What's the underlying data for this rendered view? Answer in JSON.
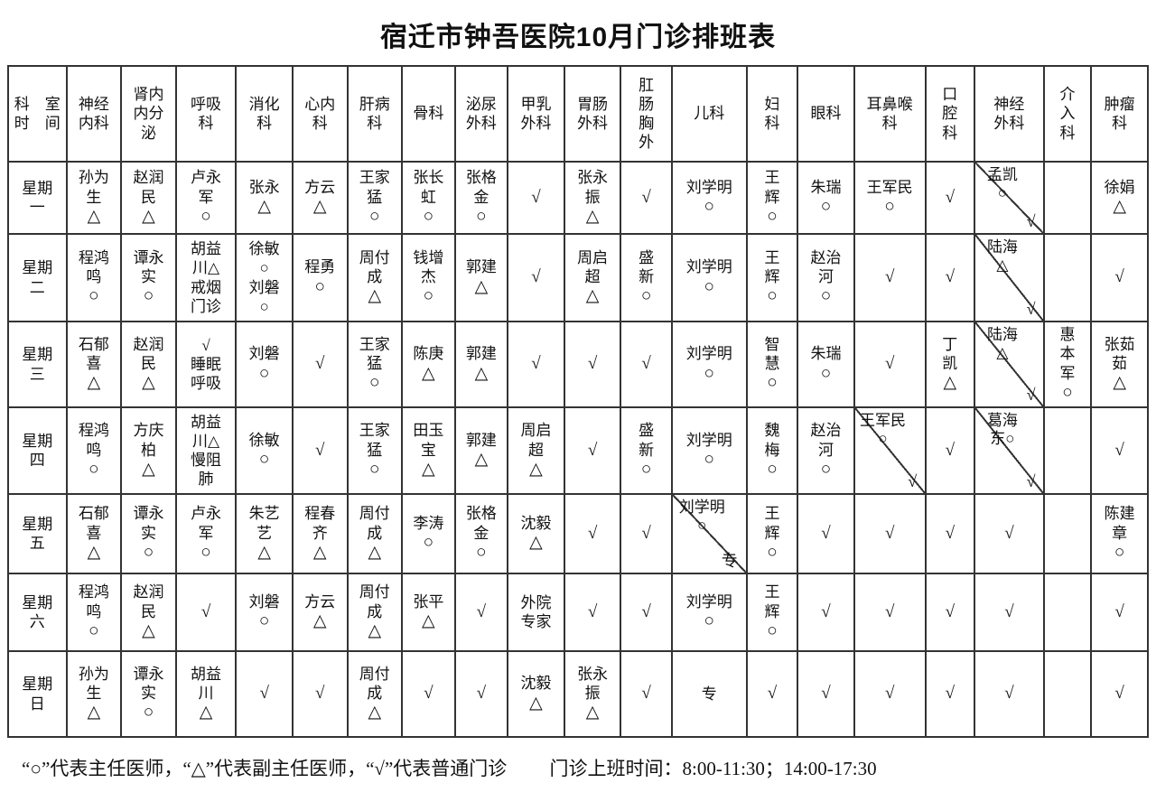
{
  "title": "宿迁市钟吾医院10月门诊排班表",
  "corner": [
    "科　室",
    "时　间"
  ],
  "departments": [
    {
      "lines": [
        "神经",
        "内科"
      ]
    },
    {
      "lines": [
        "肾内",
        "内分",
        "泌"
      ]
    },
    {
      "lines": [
        "呼吸",
        "科"
      ]
    },
    {
      "lines": [
        "消化",
        "科"
      ]
    },
    {
      "lines": [
        "心内",
        "科"
      ]
    },
    {
      "lines": [
        "肝病",
        "科"
      ]
    },
    {
      "lines": [
        "骨科"
      ]
    },
    {
      "lines": [
        "泌尿",
        "外科"
      ]
    },
    {
      "lines": [
        "甲乳",
        "外科"
      ]
    },
    {
      "lines": [
        "胃肠",
        "外科"
      ]
    },
    {
      "lines": [
        "肛",
        "肠",
        "胸",
        "外"
      ]
    },
    {
      "lines": [
        "儿科"
      ]
    },
    {
      "lines": [
        "妇",
        "科"
      ]
    },
    {
      "lines": [
        "眼科"
      ]
    },
    {
      "lines": [
        "耳鼻喉",
        "科"
      ]
    },
    {
      "lines": [
        "口",
        "腔",
        "科"
      ]
    },
    {
      "lines": [
        "神经",
        "外科"
      ]
    },
    {
      "lines": [
        "介",
        "入",
        "科"
      ]
    },
    {
      "lines": [
        "肿瘤",
        "科"
      ]
    }
  ],
  "days": [
    {
      "label": [
        "星期",
        "一"
      ],
      "cells": [
        {
          "lines": [
            "孙为",
            "生"
          ],
          "mark": "△"
        },
        {
          "lines": [
            "赵润",
            "民"
          ],
          "mark": "△"
        },
        {
          "lines": [
            "卢永",
            "军"
          ],
          "mark": "○"
        },
        {
          "lines": [
            "张永"
          ],
          "mark": "△"
        },
        {
          "lines": [
            "方云"
          ],
          "mark": "△"
        },
        {
          "lines": [
            "王家",
            "猛"
          ],
          "mark": "○"
        },
        {
          "lines": [
            "张长",
            "虹"
          ],
          "mark": "○"
        },
        {
          "lines": [
            "张格",
            "金"
          ],
          "mark": "○"
        },
        {
          "mark": "√"
        },
        {
          "lines": [
            "张永",
            "振"
          ],
          "mark": "△"
        },
        {
          "mark": "√"
        },
        {
          "lines": [
            "刘学明"
          ],
          "mark": "○"
        },
        {
          "lines": [
            "王",
            "辉"
          ],
          "mark": "○"
        },
        {
          "lines": [
            "朱瑞"
          ],
          "mark": "○"
        },
        {
          "lines": [
            "王军民"
          ],
          "mark": "○"
        },
        {
          "mark": "√"
        },
        {
          "split": {
            "top": [
              "孟凯",
              "○"
            ],
            "bottom": "√"
          }
        },
        {},
        {
          "lines": [
            "徐娟"
          ],
          "mark": "△"
        }
      ]
    },
    {
      "label": [
        "星期",
        "二"
      ],
      "cells": [
        {
          "lines": [
            "程鸿",
            "鸣"
          ],
          "mark": "○"
        },
        {
          "lines": [
            "谭永",
            "实"
          ],
          "mark": "○"
        },
        {
          "lines": [
            "胡益",
            "川△",
            "戒烟",
            "门诊"
          ]
        },
        {
          "lines": [
            "徐敏",
            "○",
            "刘磐",
            "○"
          ]
        },
        {
          "lines": [
            "程勇"
          ],
          "mark": "○"
        },
        {
          "lines": [
            "周付",
            "成"
          ],
          "mark": "△"
        },
        {
          "lines": [
            "钱增",
            "杰"
          ],
          "mark": "○"
        },
        {
          "lines": [
            "郭建"
          ],
          "mark": "△"
        },
        {
          "mark": "√"
        },
        {
          "lines": [
            "周启",
            "超"
          ],
          "mark": "△"
        },
        {
          "lines": [
            "盛",
            "新"
          ],
          "mark": "○"
        },
        {
          "lines": [
            "刘学明"
          ],
          "mark": "○"
        },
        {
          "lines": [
            "王",
            "辉"
          ],
          "mark": "○"
        },
        {
          "lines": [
            "赵治",
            "河"
          ],
          "mark": "○"
        },
        {
          "mark": "√"
        },
        {
          "mark": "√"
        },
        {
          "split": {
            "top": [
              "陆海",
              "△"
            ],
            "bottom": "√"
          }
        },
        {},
        {
          "mark": "√"
        }
      ]
    },
    {
      "label": [
        "星期",
        "三"
      ],
      "cells": [
        {
          "lines": [
            "石郁",
            "喜"
          ],
          "mark": "△"
        },
        {
          "lines": [
            "赵润",
            "民"
          ],
          "mark": "△"
        },
        {
          "lines": [
            "√",
            "睡眠",
            "呼吸"
          ]
        },
        {
          "lines": [
            "刘磐"
          ],
          "mark": "○"
        },
        {
          "mark": "√"
        },
        {
          "lines": [
            "王家",
            "猛"
          ],
          "mark": "○"
        },
        {
          "lines": [
            "陈庚"
          ],
          "mark": "△"
        },
        {
          "lines": [
            "郭建"
          ],
          "mark": "△"
        },
        {
          "mark": "√"
        },
        {
          "mark": "√"
        },
        {
          "mark": "√"
        },
        {
          "lines": [
            "刘学明"
          ],
          "mark": "○"
        },
        {
          "lines": [
            "智",
            "慧"
          ],
          "mark": "○"
        },
        {
          "lines": [
            "朱瑞"
          ],
          "mark": "○"
        },
        {
          "mark": "√"
        },
        {
          "lines": [
            "丁",
            "凯"
          ],
          "mark": "△"
        },
        {
          "split": {
            "top": [
              "陆海",
              "△"
            ],
            "bottom": "√"
          }
        },
        {
          "lines": [
            "惠",
            "本",
            "军"
          ],
          "mark": "○"
        },
        {
          "lines": [
            "张茹",
            "茹"
          ],
          "mark": "△"
        }
      ]
    },
    {
      "label": [
        "星期",
        "四"
      ],
      "cells": [
        {
          "lines": [
            "程鸿",
            "鸣"
          ],
          "mark": "○"
        },
        {
          "lines": [
            "方庆",
            "柏"
          ],
          "mark": "△"
        },
        {
          "lines": [
            "胡益",
            "川△",
            "慢阻",
            "肺"
          ]
        },
        {
          "lines": [
            "徐敏"
          ],
          "mark": "○"
        },
        {
          "mark": "√"
        },
        {
          "lines": [
            "王家",
            "猛"
          ],
          "mark": "○"
        },
        {
          "lines": [
            "田玉",
            "宝"
          ],
          "mark": "△"
        },
        {
          "lines": [
            "郭建"
          ],
          "mark": "△"
        },
        {
          "lines": [
            "周启",
            "超"
          ],
          "mark": "△"
        },
        {
          "mark": "√"
        },
        {
          "lines": [
            "盛",
            "新"
          ],
          "mark": "○"
        },
        {
          "lines": [
            "刘学明"
          ],
          "mark": "○"
        },
        {
          "lines": [
            "魏",
            "梅"
          ],
          "mark": "○"
        },
        {
          "lines": [
            "赵治",
            "河"
          ],
          "mark": "○"
        },
        {
          "split": {
            "top": [
              "王军民",
              "○"
            ],
            "bottom": "√"
          }
        },
        {
          "mark": "√"
        },
        {
          "split": {
            "top": [
              "葛海",
              "东○"
            ],
            "bottom": "√"
          }
        },
        {},
        {
          "mark": "√"
        }
      ]
    },
    {
      "label": [
        "星期",
        "五"
      ],
      "cells": [
        {
          "lines": [
            "石郁",
            "喜"
          ],
          "mark": "△"
        },
        {
          "lines": [
            "谭永",
            "实"
          ],
          "mark": "○"
        },
        {
          "lines": [
            "卢永",
            "军"
          ],
          "mark": "○"
        },
        {
          "lines": [
            "朱艺",
            "艺"
          ],
          "mark": "△"
        },
        {
          "lines": [
            "程春",
            "齐"
          ],
          "mark": "△"
        },
        {
          "lines": [
            "周付",
            "成"
          ],
          "mark": "△"
        },
        {
          "lines": [
            "李涛"
          ],
          "mark": "○"
        },
        {
          "lines": [
            "张格",
            "金"
          ],
          "mark": "○"
        },
        {
          "lines": [
            "沈毅"
          ],
          "mark": "△"
        },
        {
          "mark": "√"
        },
        {
          "mark": "√"
        },
        {
          "split": {
            "top": [
              "刘学明",
              "○"
            ],
            "bottom": "专"
          }
        },
        {
          "lines": [
            "王",
            "辉"
          ],
          "mark": "○"
        },
        {
          "mark": "√"
        },
        {
          "mark": "√"
        },
        {
          "mark": "√"
        },
        {
          "mark": "√"
        },
        {},
        {
          "lines": [
            "陈建",
            "章"
          ],
          "mark": "○"
        }
      ]
    },
    {
      "label": [
        "星期",
        "六"
      ],
      "cells": [
        {
          "lines": [
            "程鸿",
            "鸣"
          ],
          "mark": "○"
        },
        {
          "lines": [
            "赵润",
            "民"
          ],
          "mark": "△"
        },
        {
          "mark": "√"
        },
        {
          "lines": [
            "刘磐"
          ],
          "mark": "○"
        },
        {
          "lines": [
            "方云"
          ],
          "mark": "△"
        },
        {
          "lines": [
            "周付",
            "成"
          ],
          "mark": "△"
        },
        {
          "lines": [
            "张平"
          ],
          "mark": "△"
        },
        {
          "mark": "√"
        },
        {
          "lines": [
            "外院",
            "专家"
          ]
        },
        {
          "mark": "√"
        },
        {
          "mark": "√"
        },
        {
          "lines": [
            "刘学明"
          ],
          "mark": "○"
        },
        {
          "lines": [
            "王",
            "辉"
          ],
          "mark": "○"
        },
        {
          "mark": "√"
        },
        {
          "mark": "√"
        },
        {
          "mark": "√"
        },
        {
          "mark": "√"
        },
        {},
        {
          "mark": "√"
        }
      ]
    },
    {
      "label": [
        "星期",
        "日"
      ],
      "cells": [
        {
          "lines": [
            "孙为",
            "生"
          ],
          "mark": "△"
        },
        {
          "lines": [
            "谭永",
            "实"
          ],
          "mark": "○"
        },
        {
          "lines": [
            "胡益",
            "川"
          ],
          "mark": "△"
        },
        {
          "mark": "√"
        },
        {
          "mark": "√"
        },
        {
          "lines": [
            "周付",
            "成"
          ],
          "mark": "△"
        },
        {
          "mark": "√"
        },
        {
          "mark": "√"
        },
        {
          "lines": [
            "沈毅"
          ],
          "mark": "△"
        },
        {
          "lines": [
            "张永",
            "振"
          ],
          "mark": "△"
        },
        {
          "mark": "√"
        },
        {
          "lines": [
            "专"
          ]
        },
        {
          "mark": "√"
        },
        {
          "mark": "√"
        },
        {
          "mark": "√"
        },
        {
          "mark": "√"
        },
        {
          "mark": "√"
        },
        {},
        {
          "mark": "√"
        }
      ]
    }
  ],
  "legend": {
    "symbols": "“○”代表主任医师，“△”代表副主任医师，“√”代表普通门诊",
    "hours": "门诊上班时间：8:00-11:30；14:00-17:30"
  },
  "colors": {
    "background": "#ffffff",
    "text": "#111111",
    "border": "#333333"
  }
}
